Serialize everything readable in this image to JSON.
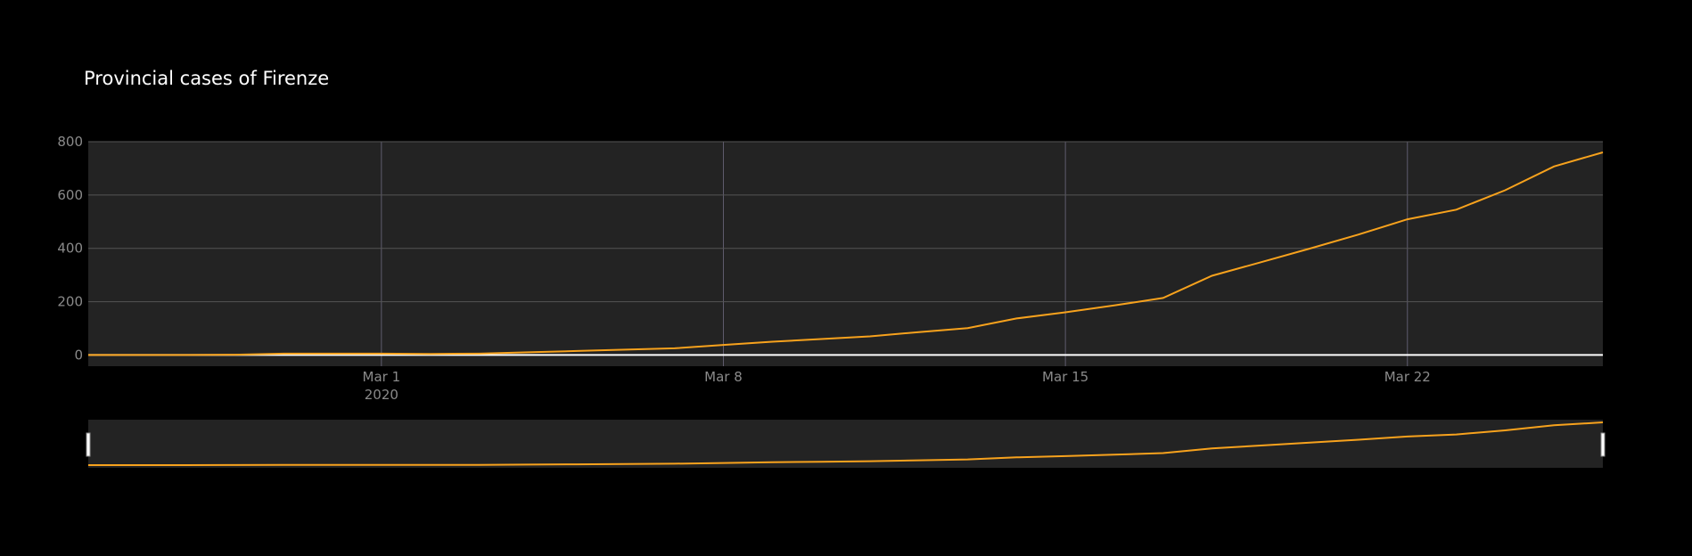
{
  "chart_data": {
    "type": "line",
    "title": "Provincial cases of Firenze",
    "x": [
      "2020-02-24",
      "2020-02-25",
      "2020-02-26",
      "2020-02-27",
      "2020-02-28",
      "2020-02-29",
      "2020-03-01",
      "2020-03-02",
      "2020-03-03",
      "2020-03-04",
      "2020-03-05",
      "2020-03-06",
      "2020-03-07",
      "2020-03-08",
      "2020-03-09",
      "2020-03-10",
      "2020-03-11",
      "2020-03-12",
      "2020-03-13",
      "2020-03-14",
      "2020-03-15",
      "2020-03-16",
      "2020-03-17",
      "2020-03-18",
      "2020-03-19",
      "2020-03-20",
      "2020-03-21",
      "2020-03-22",
      "2020-03-23",
      "2020-03-24",
      "2020-03-25",
      "2020-03-26"
    ],
    "series": [
      {
        "color": "#f7a21d",
        "values": [
          0,
          0,
          0,
          1,
          5,
          5,
          5,
          4,
          5,
          10,
          15,
          20,
          25,
          38,
          50,
          60,
          70,
          86,
          101,
          137,
          160,
          186,
          214,
          297,
          348,
          399,
          452,
          509,
          545,
          618,
          707,
          760
        ]
      }
    ],
    "xlim": [
      "2020-02-24",
      "2020-03-26"
    ],
    "xticks": [
      {
        "value": "2020-03-01",
        "label": "Mar 1"
      },
      {
        "value": "2020-03-08",
        "label": "Mar 8"
      },
      {
        "value": "2020-03-15",
        "label": "Mar 15"
      },
      {
        "value": "2020-03-22",
        "label": "Mar 22"
      }
    ],
    "xtick_year": "2020",
    "ylim": [
      -42,
      800
    ],
    "yticks": [
      0,
      200,
      400,
      600,
      800
    ],
    "grid": true,
    "rangeslider": true
  }
}
